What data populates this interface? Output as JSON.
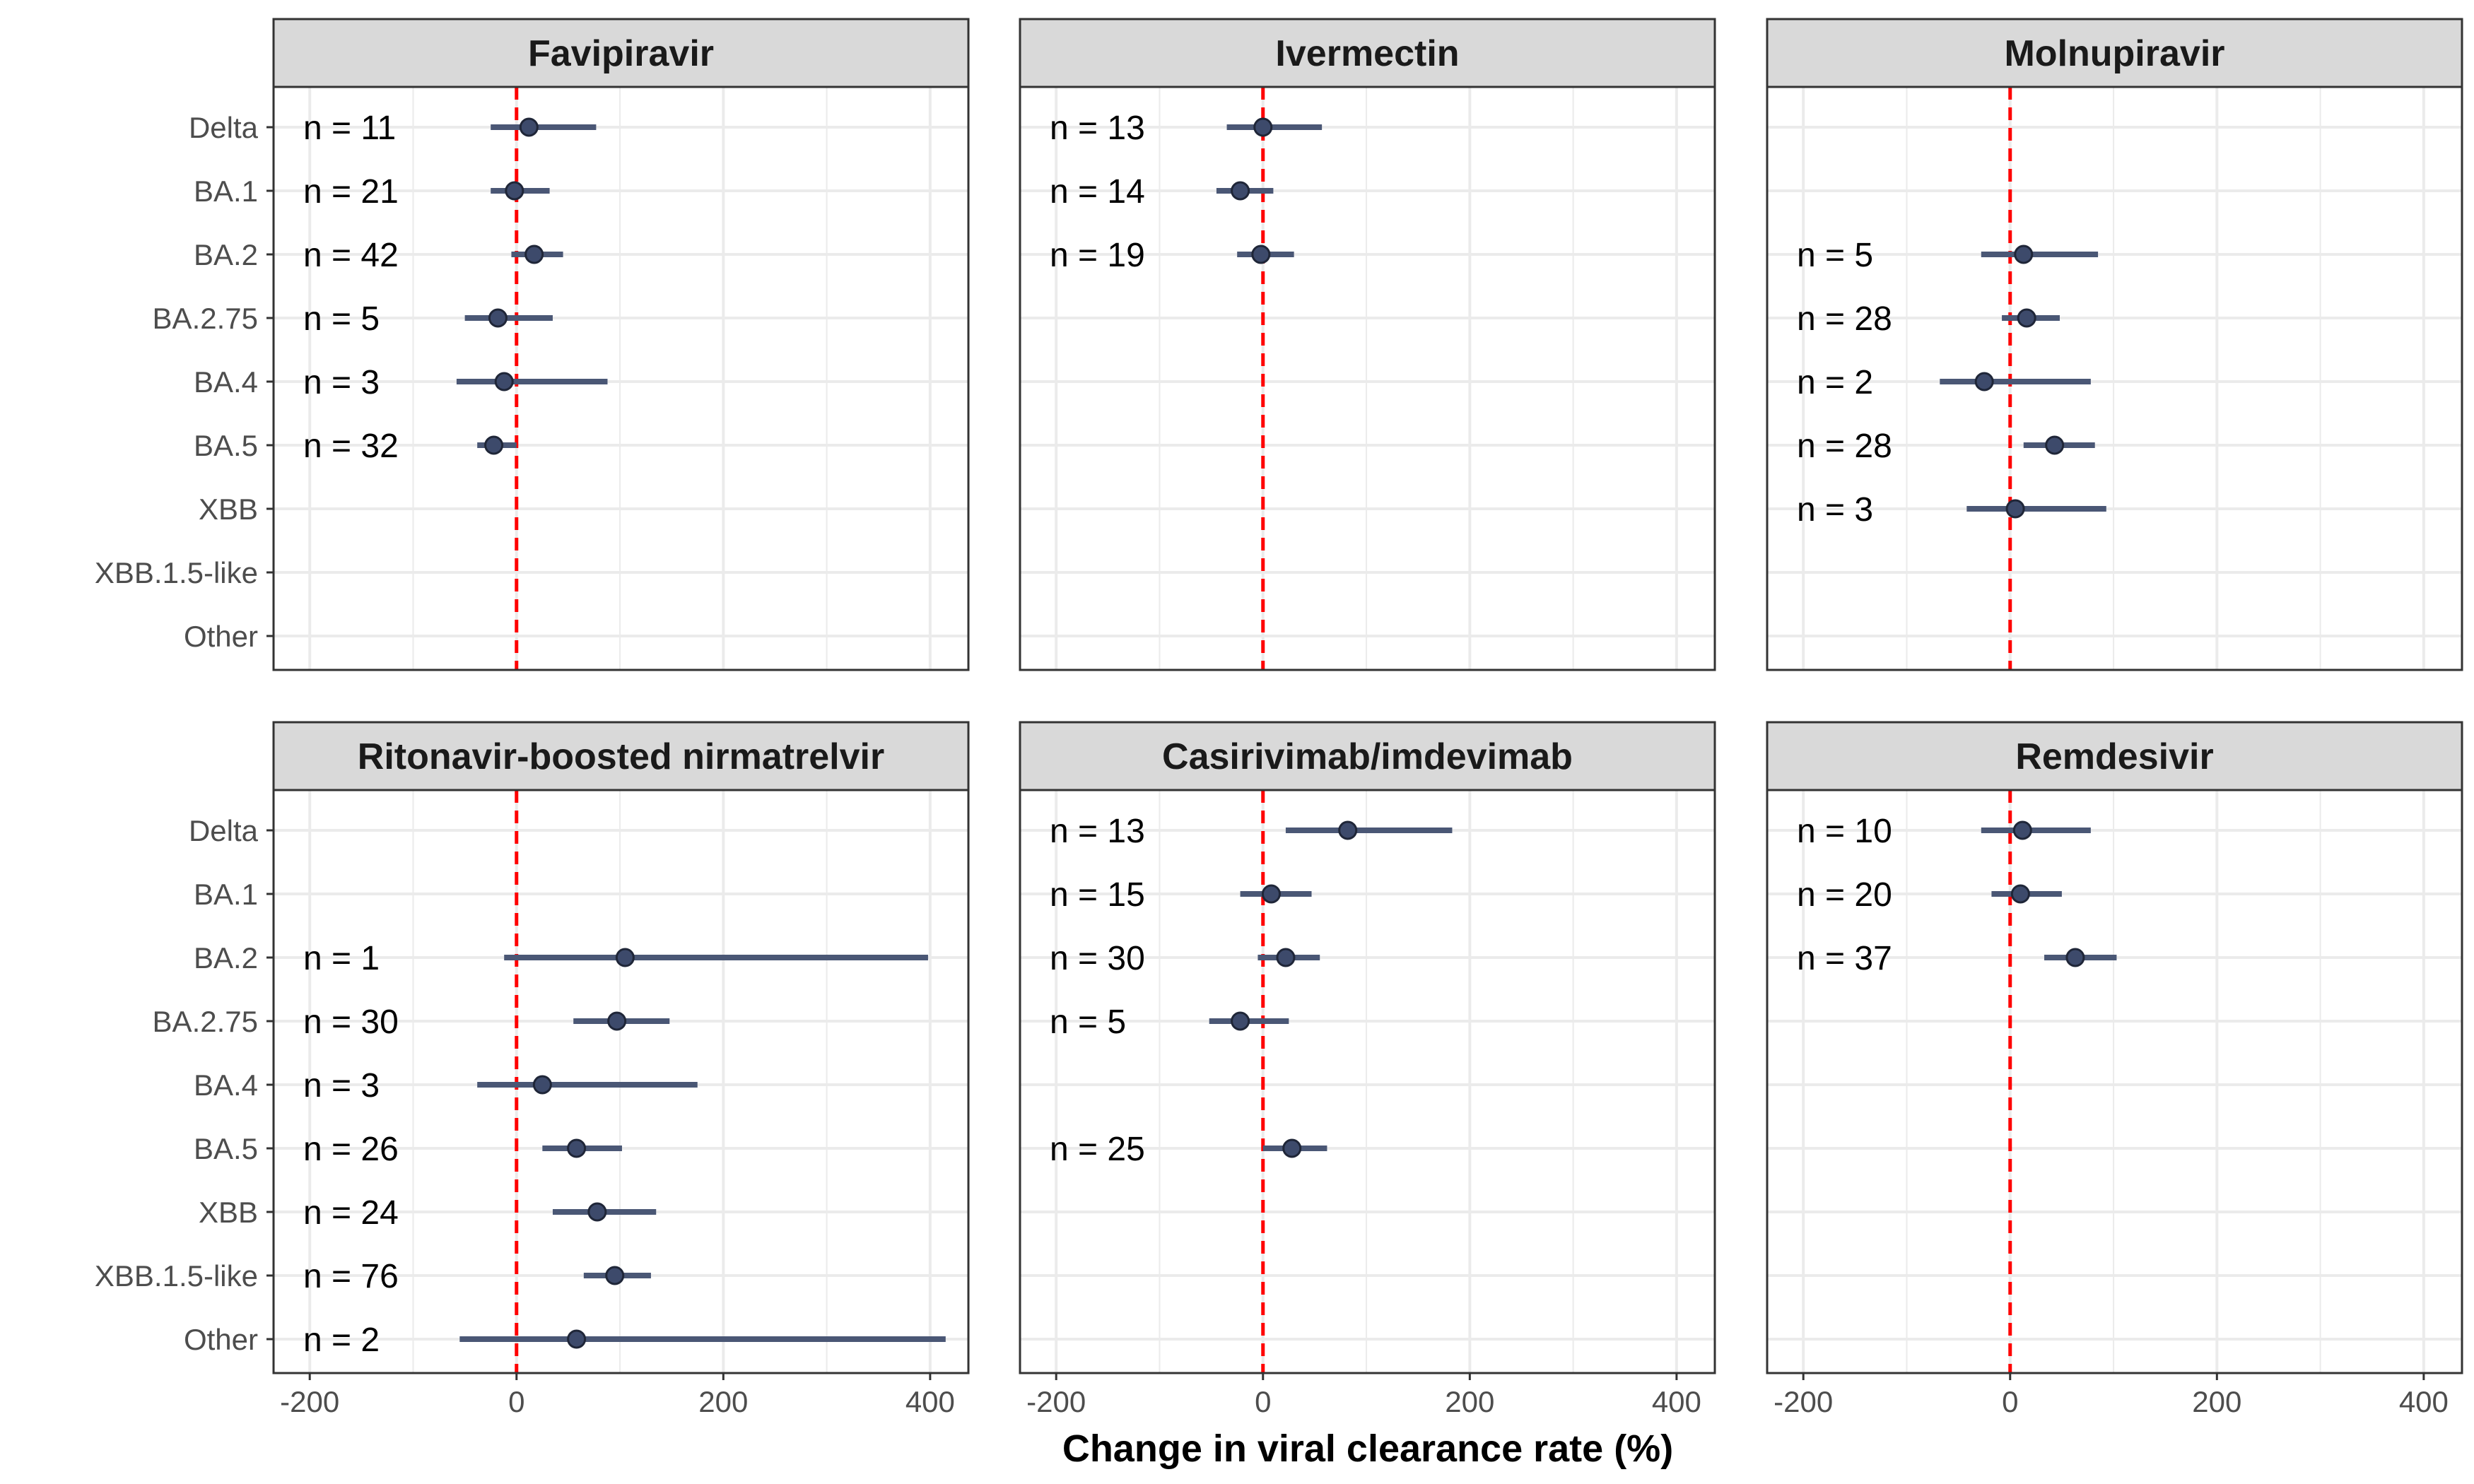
{
  "chart_data": {
    "type": "forest",
    "xlabel": "Change in viral clearance rate (%)",
    "xlim": [
      -235,
      437
    ],
    "xticks": [
      -200,
      0,
      200,
      400
    ],
    "xtick_labels": [
      "-200",
      "0",
      "200",
      "400"
    ],
    "reference_line": 0,
    "categories": [
      "Delta",
      "BA.1",
      "BA.2",
      "BA.2.75",
      "BA.4",
      "BA.5",
      "XBB",
      "XBB.1.5-like",
      "Other"
    ],
    "grid": true,
    "colors": {
      "point": "#3d4a6b",
      "interval": "#4a5775",
      "reference_line": "#ff0000",
      "strip_background": "#d9d9d9",
      "grid": "#ebebeb",
      "panel_border": "#333333"
    },
    "panels": [
      {
        "title": "Favipiravir",
        "rows": [
          {
            "category": "Delta",
            "n": "n = 11",
            "estimate": 12,
            "lower": -25,
            "upper": 77
          },
          {
            "category": "BA.1",
            "n": "n = 21",
            "estimate": -2,
            "lower": -25,
            "upper": 32
          },
          {
            "category": "BA.2",
            "n": "n = 42",
            "estimate": 17,
            "lower": -5,
            "upper": 45
          },
          {
            "category": "BA.2.75",
            "n": "n = 5",
            "estimate": -18,
            "lower": -50,
            "upper": 35
          },
          {
            "category": "BA.4",
            "n": "n = 3",
            "estimate": -12,
            "lower": -58,
            "upper": 88
          },
          {
            "category": "BA.5",
            "n": "n = 32",
            "estimate": -22,
            "lower": -38,
            "upper": 0
          }
        ]
      },
      {
        "title": "Ivermectin",
        "rows": [
          {
            "category": "Delta",
            "n": "n = 13",
            "estimate": 0,
            "lower": -35,
            "upper": 57
          },
          {
            "category": "BA.1",
            "n": "n = 14",
            "estimate": -22,
            "lower": -45,
            "upper": 10
          },
          {
            "category": "BA.2",
            "n": "n = 19",
            "estimate": -2,
            "lower": -25,
            "upper": 30
          }
        ]
      },
      {
        "title": "Molnupiravir",
        "rows": [
          {
            "category": "BA.2",
            "n": "n = 5",
            "estimate": 13,
            "lower": -28,
            "upper": 85
          },
          {
            "category": "BA.2.75",
            "n": "n = 28",
            "estimate": 16,
            "lower": -8,
            "upper": 48
          },
          {
            "category": "BA.4",
            "n": "n = 2",
            "estimate": -25,
            "lower": -68,
            "upper": 78
          },
          {
            "category": "BA.5",
            "n": "n = 28",
            "estimate": 43,
            "lower": 13,
            "upper": 82
          },
          {
            "category": "XBB",
            "n": "n = 3",
            "estimate": 5,
            "lower": -42,
            "upper": 93
          }
        ]
      },
      {
        "title": "Ritonavir-boosted nirmatrelvir",
        "rows": [
          {
            "category": "BA.2",
            "n": "n = 1",
            "estimate": 105,
            "lower": -12,
            "upper": 398
          },
          {
            "category": "BA.2.75",
            "n": "n = 30",
            "estimate": 97,
            "lower": 55,
            "upper": 148
          },
          {
            "category": "BA.4",
            "n": "n = 3",
            "estimate": 25,
            "lower": -38,
            "upper": 175
          },
          {
            "category": "BA.5",
            "n": "n = 26",
            "estimate": 58,
            "lower": 25,
            "upper": 102
          },
          {
            "category": "XBB",
            "n": "n = 24",
            "estimate": 78,
            "lower": 35,
            "upper": 135
          },
          {
            "category": "XBB.1.5-like",
            "n": "n = 76",
            "estimate": 95,
            "lower": 65,
            "upper": 130
          },
          {
            "category": "Other",
            "n": "n = 2",
            "estimate": 58,
            "lower": -55,
            "upper": 415
          }
        ]
      },
      {
        "title": "Casirivimab/imdevimab",
        "rows": [
          {
            "category": "Delta",
            "n": "n = 13",
            "estimate": 82,
            "lower": 22,
            "upper": 183
          },
          {
            "category": "BA.1",
            "n": "n = 15",
            "estimate": 8,
            "lower": -22,
            "upper": 47
          },
          {
            "category": "BA.2",
            "n": "n = 30",
            "estimate": 22,
            "lower": -5,
            "upper": 55
          },
          {
            "category": "BA.2.75",
            "n": "n = 5",
            "estimate": -22,
            "lower": -52,
            "upper": 25
          },
          {
            "category": "BA.5",
            "n": "n = 25",
            "estimate": 28,
            "lower": 0,
            "upper": 62
          }
        ]
      },
      {
        "title": "Remdesivir",
        "rows": [
          {
            "category": "Delta",
            "n": "n = 10",
            "estimate": 12,
            "lower": -28,
            "upper": 78
          },
          {
            "category": "BA.1",
            "n": "n = 20",
            "estimate": 10,
            "lower": -18,
            "upper": 50
          },
          {
            "category": "BA.2",
            "n": "n = 37",
            "estimate": 63,
            "lower": 33,
            "upper": 103
          }
        ]
      }
    ]
  }
}
